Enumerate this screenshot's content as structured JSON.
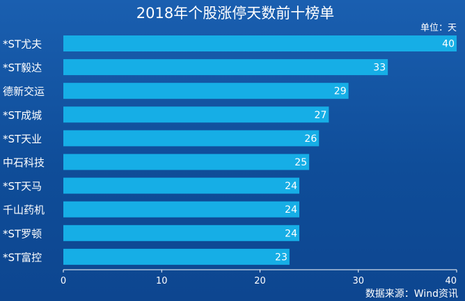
{
  "chart_data": {
    "type": "bar",
    "orientation": "horizontal",
    "title": "2018年个股涨停天数前十榜单",
    "unit_label": "单位：天",
    "source": "数据来源：Wind资讯",
    "categories": [
      "*ST尤夫",
      "*ST毅达",
      "德新交运",
      "*ST成城",
      "*ST天业",
      "中石科技",
      "*ST天马",
      "千山药机",
      "*ST罗顿",
      "*ST富控"
    ],
    "values": [
      40,
      33,
      29,
      27,
      26,
      25,
      24,
      24,
      24,
      23
    ],
    "xlim": [
      0,
      40
    ],
    "x_ticks": [
      0,
      10,
      20,
      30,
      40
    ],
    "bar_color": "#16aee6",
    "background_color": "#1256a6",
    "grid": false,
    "legend": "none"
  }
}
